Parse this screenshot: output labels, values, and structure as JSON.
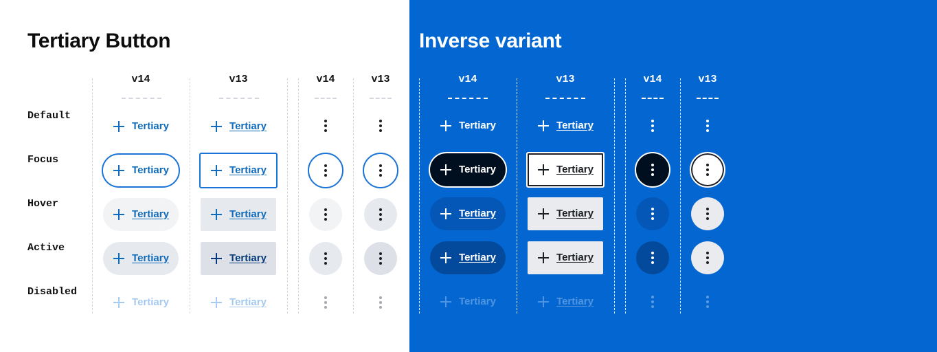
{
  "titles": {
    "main": "Tertiary Button",
    "inverse": "Inverse variant"
  },
  "column_headers": {
    "wide_v14": "v14",
    "wide_v13": "v13",
    "icon_v14": "v14",
    "icon_v13": "v13"
  },
  "row_labels": [
    "Default",
    "Focus",
    "Hover",
    "Active",
    "Disabled"
  ],
  "button_label": "Tertiary",
  "icons": {
    "leading": "plus-icon",
    "overflow": "kebab-vertical-icon"
  },
  "colors": {
    "brand_blue": "#0366d1",
    "light_text": "#0f6cbd",
    "focus_ring": "#1a73d9",
    "hover_bg": "#f1f3f5",
    "active_bg": "#e6e9ee",
    "dark_focus_bg": "#000f1f",
    "inverse_hover_bg": "#0557b7",
    "inverse_active_bg": "#044a9c",
    "inverse_light_bg": "#e9ebee"
  }
}
